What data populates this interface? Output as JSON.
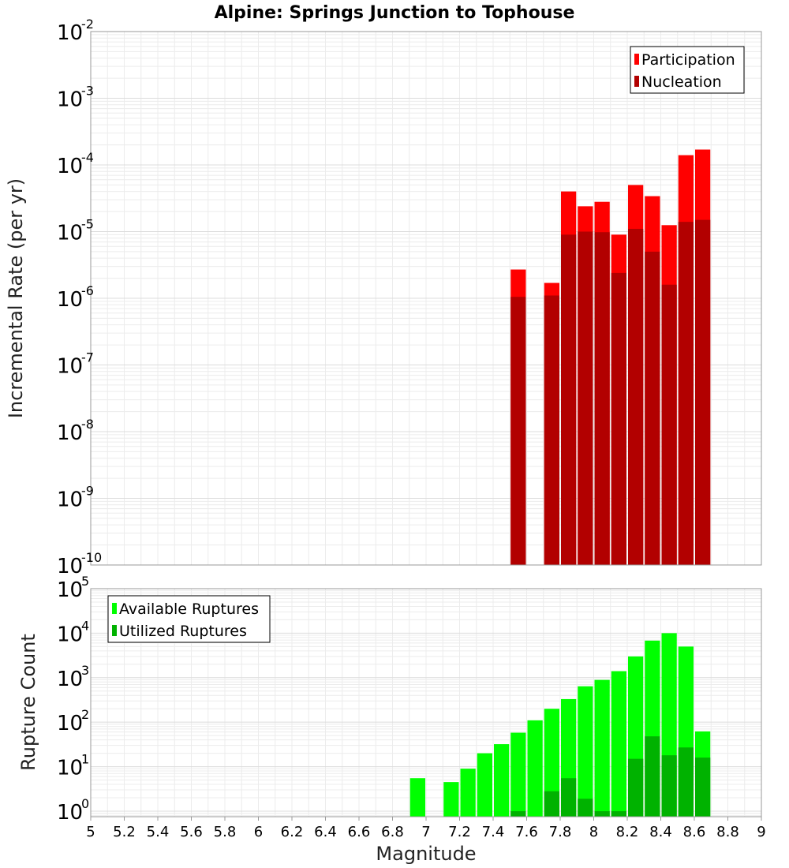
{
  "chart_data": {
    "title": "Alpine: Springs Junction to Tophouse",
    "xlabel": "Magnitude",
    "xlim": [
      5,
      9
    ],
    "x_ticks": [
      "5",
      "5.2",
      "5.4",
      "5.6",
      "5.8",
      "6",
      "6.2",
      "6.4",
      "6.6",
      "6.8",
      "7",
      "7.2",
      "7.4",
      "7.6",
      "7.8",
      "8",
      "8.2",
      "8.4",
      "8.6",
      "8.8",
      "9"
    ],
    "x_tick_values": [
      5,
      5.2,
      5.4,
      5.6,
      5.8,
      6,
      6.2,
      6.4,
      6.6,
      6.8,
      7,
      7.2,
      7.4,
      7.6,
      7.8,
      8,
      8.2,
      8.4,
      8.6,
      8.8,
      9
    ],
    "bin_width": 0.1,
    "grid": true,
    "panels": [
      {
        "type": "bar",
        "ylabel": "Incremental Rate (per yr)",
        "yscale": "log",
        "ylim": [
          1e-10,
          0.01
        ],
        "y_ticks": [
          {
            "base": "10",
            "exp": "-2"
          },
          {
            "base": "10",
            "exp": "-3"
          },
          {
            "base": "10",
            "exp": "-4"
          },
          {
            "base": "10",
            "exp": "-5"
          },
          {
            "base": "10",
            "exp": "-6"
          },
          {
            "base": "10",
            "exp": "-7"
          },
          {
            "base": "10",
            "exp": "-8"
          },
          {
            "base": "10",
            "exp": "-9"
          },
          {
            "base": "10",
            "exp": "-10"
          }
        ],
        "y_tick_values": [
          0.01,
          0.001,
          0.0001,
          1e-05,
          1e-06,
          1e-07,
          1e-08,
          1e-09,
          1e-10
        ],
        "legend_position": "top-right",
        "series": [
          {
            "name": "Participation",
            "color": "#ff0000",
            "x": [
              7.55,
              7.75,
              7.85,
              7.95,
              8.05,
              8.15,
              8.25,
              8.35,
              8.45,
              8.55,
              8.65
            ],
            "values": [
              2.7e-06,
              1.7e-06,
              4e-05,
              2.4e-05,
              2.8e-05,
              9e-06,
              5e-05,
              3.4e-05,
              1.25e-05,
              0.00014,
              0.00017
            ]
          },
          {
            "name": "Nucleation",
            "color": "#b20000",
            "x": [
              7.55,
              7.75,
              7.85,
              7.95,
              8.05,
              8.15,
              8.25,
              8.35,
              8.45,
              8.55,
              8.65
            ],
            "values": [
              1.05e-06,
              1.1e-06,
              9e-06,
              1e-05,
              9.8e-06,
              2.4e-06,
              1.1e-05,
              5e-06,
              1.6e-06,
              1.4e-05,
              1.5e-05
            ]
          }
        ]
      },
      {
        "type": "bar",
        "ylabel": "Rupture Count",
        "yscale": "log",
        "ylim": [
          0.75,
          100000
        ],
        "y_ticks": [
          {
            "base": "10",
            "exp": "5"
          },
          {
            "base": "10",
            "exp": "4"
          },
          {
            "base": "10",
            "exp": "3"
          },
          {
            "base": "10",
            "exp": "2"
          },
          {
            "base": "10",
            "exp": "1"
          },
          {
            "base": "10",
            "exp": "0"
          }
        ],
        "y_tick_values": [
          100000,
          10000,
          1000,
          100,
          10,
          1
        ],
        "legend_position": "top-left",
        "series": [
          {
            "name": "Available Ruptures",
            "color": "#00ff00",
            "x": [
              6.95,
              7.15,
              7.25,
              7.35,
              7.45,
              7.55,
              7.65,
              7.75,
              7.85,
              7.95,
              8.05,
              8.15,
              8.25,
              8.35,
              8.45,
              8.55,
              8.65
            ],
            "values": [
              5.5,
              4.5,
              9,
              20,
              32,
              58,
              110,
              200,
              330,
              640,
              890,
              1400,
              3000,
              6800,
              10000,
              5000,
              62
            ]
          },
          {
            "name": "Utilized Ruptures",
            "color": "#00b200",
            "x": [
              7.55,
              7.75,
              7.85,
              7.95,
              8.05,
              8.15,
              8.25,
              8.35,
              8.45,
              8.55,
              8.65
            ],
            "values": [
              1,
              2.8,
              5.5,
              1.9,
              1,
              1,
              15,
              48,
              18,
              27,
              16
            ]
          }
        ]
      }
    ]
  }
}
